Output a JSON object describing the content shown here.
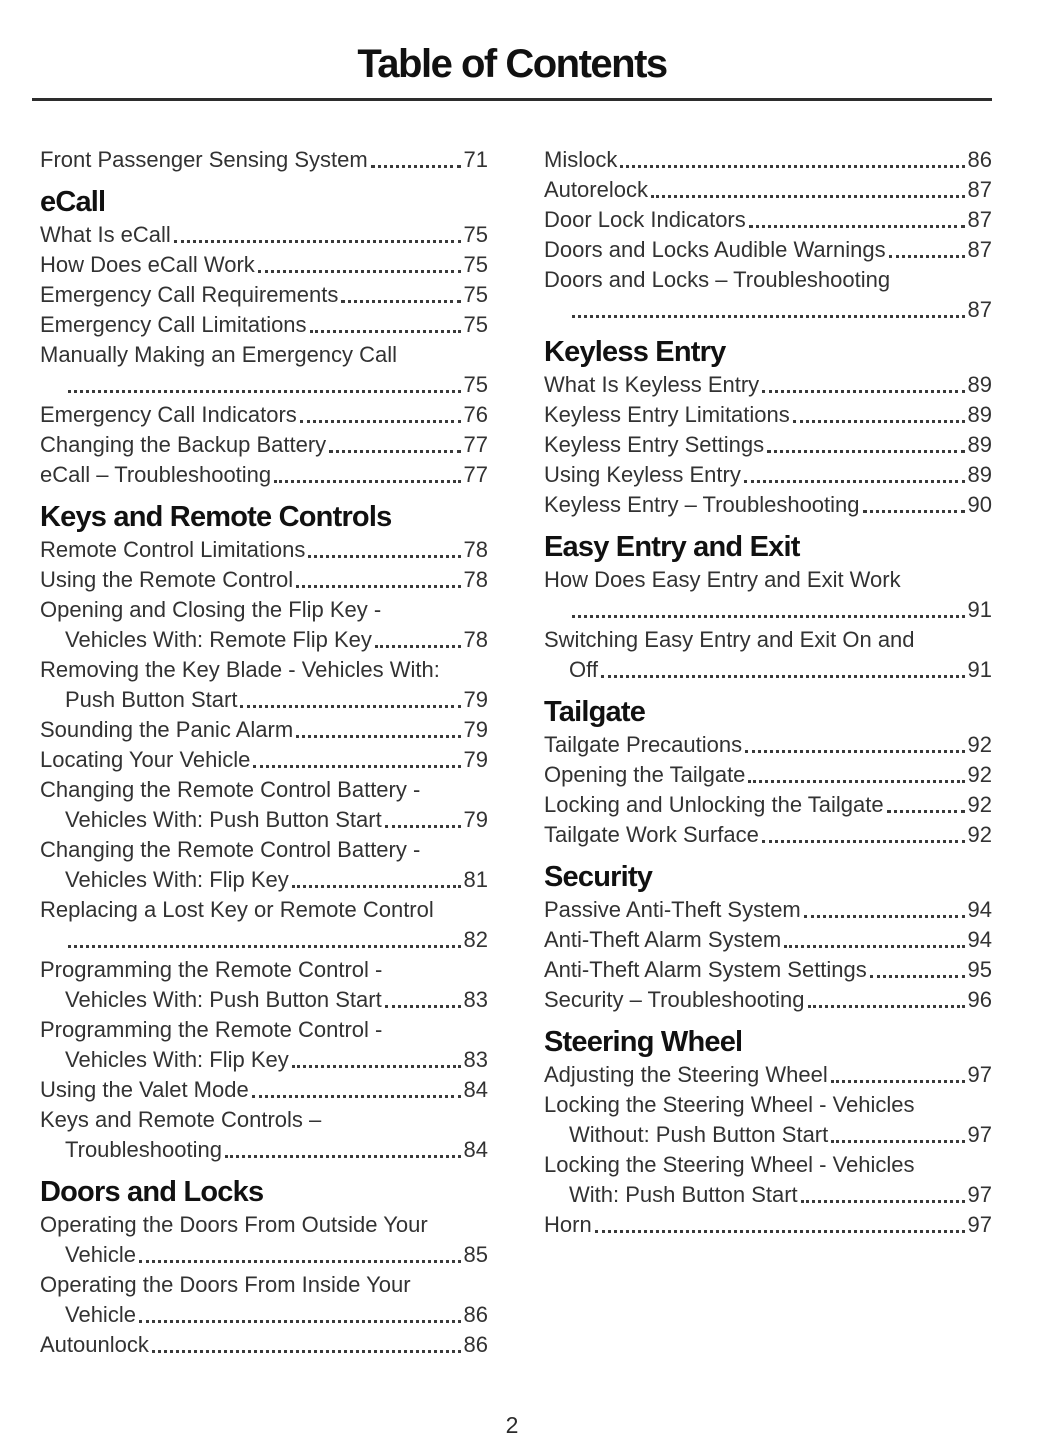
{
  "page": {
    "title": "Table of Contents",
    "page_number": "2"
  },
  "columns": [
    {
      "blocks": [
        {
          "entries": [
            {
              "label": "Front Passenger Sensing System",
              "page": "71"
            }
          ]
        },
        {
          "heading": "eCall",
          "entries": [
            {
              "label": "What Is eCall",
              "page": "75"
            },
            {
              "label": "How Does eCall Work",
              "page": "75"
            },
            {
              "label": "Emergency Call Requirements",
              "page": "75"
            },
            {
              "label": "Emergency Call Limitations",
              "page": "75"
            },
            {
              "pre": "Manually Making an Emergency Call",
              "label": "",
              "page": "75"
            },
            {
              "label": "Emergency Call Indicators",
              "page": "76"
            },
            {
              "label": "Changing the Backup Battery",
              "page": "77"
            },
            {
              "label": "eCall – Troubleshooting",
              "page": "77"
            }
          ]
        },
        {
          "heading": "Keys and Remote Controls",
          "entries": [
            {
              "label": "Remote Control Limitations",
              "page": "78"
            },
            {
              "label": "Using the Remote Control",
              "page": "78"
            },
            {
              "pre": "Opening and Closing the Flip Key -",
              "label": "Vehicles With: Remote Flip Key",
              "page": "78"
            },
            {
              "pre": "Removing the Key Blade - Vehicles With:",
              "label": "Push Button Start",
              "page": "79"
            },
            {
              "label": "Sounding the Panic Alarm",
              "page": "79"
            },
            {
              "label": "Locating Your Vehicle",
              "page": "79"
            },
            {
              "pre": "Changing the Remote Control Battery -",
              "label": "Vehicles With: Push Button Start",
              "page": "79"
            },
            {
              "pre": "Changing the Remote Control Battery -",
              "label": "Vehicles With: Flip Key",
              "page": "81"
            },
            {
              "pre": "Replacing a Lost Key or Remote Control",
              "label": "",
              "page": "82"
            },
            {
              "pre": "Programming the Remote Control -",
              "label": "Vehicles With: Push Button Start",
              "page": "83"
            },
            {
              "pre": "Programming the Remote Control -",
              "label": "Vehicles With: Flip Key",
              "page": "83"
            },
            {
              "label": "Using the Valet Mode",
              "page": "84"
            },
            {
              "pre": "Keys and Remote Controls –",
              "label": "Troubleshooting",
              "page": "84"
            }
          ]
        },
        {
          "heading": "Doors and Locks",
          "entries": [
            {
              "pre": "Operating the Doors From Outside Your",
              "label": "Vehicle",
              "page": "85"
            },
            {
              "pre": "Operating the Doors From Inside Your",
              "label": "Vehicle",
              "page": "86"
            },
            {
              "label": "Autounlock",
              "page": "86"
            }
          ]
        }
      ]
    },
    {
      "blocks": [
        {
          "entries": [
            {
              "label": "Mislock",
              "page": "86"
            },
            {
              "label": "Autorelock",
              "page": "87"
            },
            {
              "label": "Door Lock Indicators",
              "page": "87"
            },
            {
              "label": "Doors and Locks Audible Warnings",
              "page": "87"
            },
            {
              "pre": "Doors and Locks – Troubleshooting",
              "label": "",
              "page": "87"
            }
          ]
        },
        {
          "heading": "Keyless Entry",
          "entries": [
            {
              "label": "What Is Keyless Entry",
              "page": "89"
            },
            {
              "label": "Keyless Entry Limitations",
              "page": "89"
            },
            {
              "label": "Keyless Entry Settings",
              "page": "89"
            },
            {
              "label": "Using Keyless Entry",
              "page": "89"
            },
            {
              "label": "Keyless Entry – Troubleshooting",
              "page": "90"
            }
          ]
        },
        {
          "heading": "Easy Entry and Exit",
          "entries": [
            {
              "pre": "How Does Easy Entry and Exit Work",
              "label": "",
              "page": "91"
            },
            {
              "pre": "Switching Easy Entry and Exit On and",
              "label": "Off",
              "page": "91"
            }
          ]
        },
        {
          "heading": "Tailgate",
          "entries": [
            {
              "label": "Tailgate Precautions",
              "page": "92"
            },
            {
              "label": "Opening the Tailgate",
              "page": "92"
            },
            {
              "label": "Locking and Unlocking the Tailgate",
              "page": "92"
            },
            {
              "label": "Tailgate Work Surface",
              "page": "92"
            }
          ]
        },
        {
          "heading": "Security",
          "entries": [
            {
              "label": "Passive Anti-Theft System",
              "page": "94"
            },
            {
              "label": "Anti-Theft Alarm System",
              "page": "94"
            },
            {
              "label": "Anti-Theft Alarm System Settings",
              "page": "95"
            },
            {
              "label": "Security – Troubleshooting",
              "page": "96"
            }
          ]
        },
        {
          "heading": "Steering Wheel",
          "entries": [
            {
              "label": "Adjusting the Steering Wheel",
              "page": "97"
            },
            {
              "pre": "Locking the Steering Wheel - Vehicles",
              "label": "Without: Push Button Start",
              "page": "97"
            },
            {
              "pre": "Locking the Steering Wheel - Vehicles",
              "label": "With: Push Button Start",
              "page": "97"
            },
            {
              "label": "Horn",
              "page": "97"
            }
          ]
        }
      ]
    }
  ]
}
